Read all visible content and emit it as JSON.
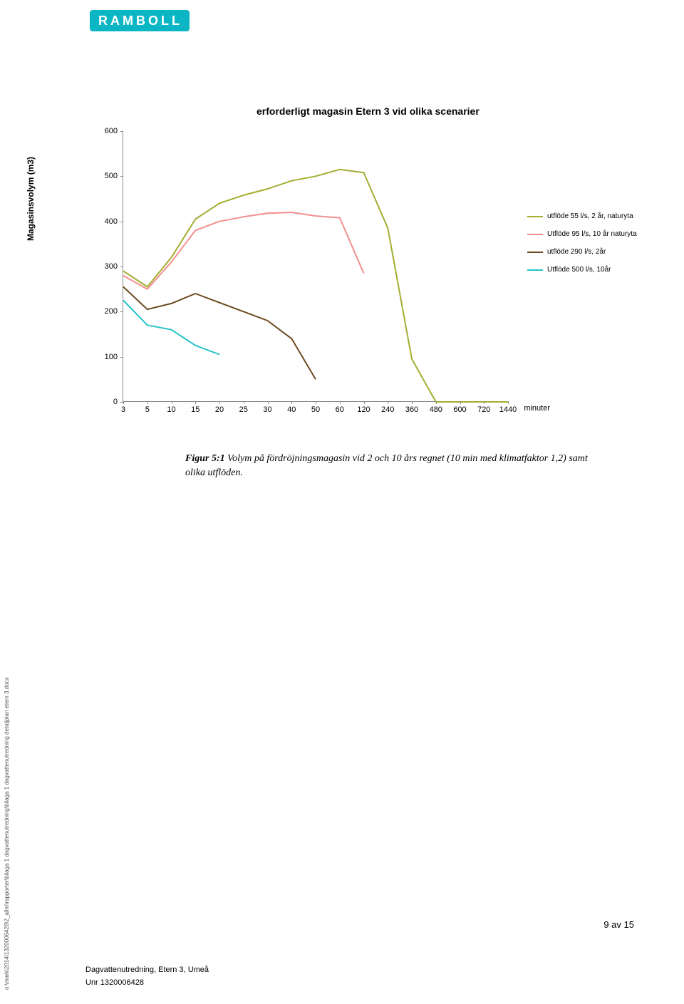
{
  "logo": {
    "text": "RAMBOLL"
  },
  "chart": {
    "type": "line",
    "title": "erforderligt magasin Etern 3 vid olika scenarier",
    "y_axis": {
      "title": "Magasinsvolym (m3)",
      "min": 0,
      "max": 600,
      "ticks": [
        0,
        100,
        200,
        300,
        400,
        500,
        600
      ],
      "label_fontsize": 11
    },
    "x_axis": {
      "title": "minuter",
      "categories": [
        "3",
        "5",
        "10",
        "15",
        "20",
        "25",
        "30",
        "40",
        "50",
        "60",
        "120",
        "240",
        "360",
        "480",
        "600",
        "720",
        "1440"
      ],
      "label_fontsize": 11
    },
    "background_color": "#ffffff",
    "axis_color": "#888888",
    "line_width": 2,
    "series": [
      {
        "name": "utflöde 55 l/s, 2 år, naturyta",
        "color": "#a3ad2f",
        "values": [
          290,
          255,
          320,
          405,
          440,
          458,
          472,
          490,
          500,
          515,
          508,
          385,
          95,
          0,
          0,
          0,
          0
        ]
      },
      {
        "name": "Utflöde 95 l/s, 10 år naturyta",
        "color": "#f28e8e",
        "values": [
          280,
          250,
          310,
          380,
          400,
          410,
          418,
          420,
          412,
          408,
          285,
          null,
          null,
          null,
          null,
          null,
          null
        ]
      },
      {
        "name": "utflöde 290 l/s, 2år",
        "color": "#6b4a1f",
        "values": [
          255,
          205,
          218,
          240,
          220,
          200,
          180,
          140,
          50,
          null,
          null,
          null,
          null,
          null,
          null,
          null,
          null
        ]
      },
      {
        "name": "Utflöde  500 l/s, 10år",
        "color": "#23c4c9",
        "values": [
          225,
          170,
          160,
          125,
          105,
          null,
          null,
          null,
          null,
          null,
          null,
          null,
          null,
          null,
          null,
          null,
          null
        ]
      }
    ],
    "legend": {
      "position": "right",
      "fontsize": 10
    }
  },
  "caption": {
    "label": "Figur 5:1",
    "text": "Volym på fördröjningsmagasin vid 2 och 10 års regnet (10 min med klimatfaktor 1,2) samt olika utflöden."
  },
  "side_path": "o:\\mark\\2014\\1320006428\\2_allm\\rapporter\\bilaga 1 dagvattenutredning\\bilaga 1 dagvattenutredning detaljplan etern 3.docx",
  "page_number": "9 av 15",
  "footer_line1": "Dagvattenutredning, Etern 3, Umeå",
  "footer_line2": "Unr 1320006428"
}
